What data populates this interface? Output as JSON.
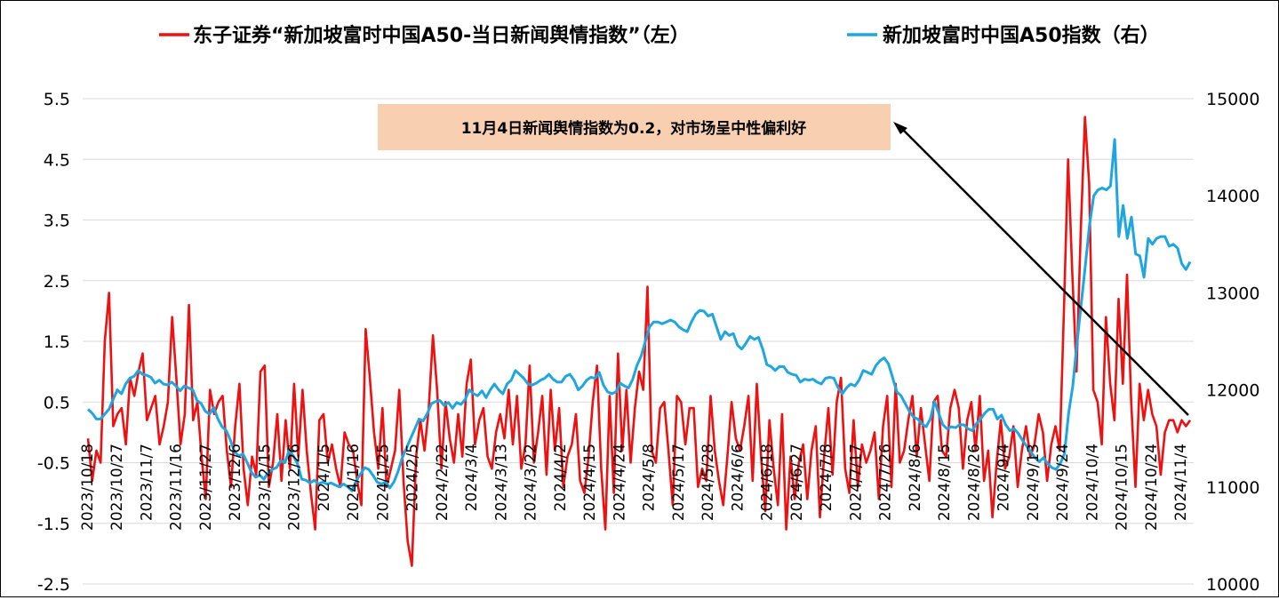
{
  "chart_data": {
    "type": "line",
    "series": [
      {
        "name": "东子证券“新加坡富时中国A50-当日新闻舆情指数”（左）",
        "axis": "left",
        "color": "#ee1111",
        "values": [
          -0.1,
          -0.8,
          -0.3,
          -0.5,
          1.5,
          2.3,
          0.1,
          0.3,
          0.4,
          -0.2,
          0.9,
          0.6,
          1.0,
          1.3,
          0.2,
          0.4,
          0.6,
          -0.2,
          0.1,
          0.5,
          1.9,
          0.9,
          -0.2,
          0.3,
          2.1,
          0.2,
          0.5,
          -0.4,
          -1.1,
          0.7,
          0.3,
          0.5,
          0.6,
          -0.3,
          -0.9,
          0.1,
          0.8,
          -0.6,
          -1.2,
          -0.4,
          -0.7,
          1.0,
          1.1,
          -0.9,
          -0.5,
          0.3,
          -0.8,
          0.2,
          -0.6,
          0.8,
          -0.4,
          0.7,
          -0.3,
          -1.0,
          -1.6,
          0.2,
          0.3,
          -0.5,
          -0.2,
          -0.6,
          -0.9,
          0.0,
          -0.2,
          -0.3,
          -0.8,
          -1.2,
          1.7,
          0.9,
          0.0,
          -0.6,
          0.4,
          -0.9,
          -0.6,
          -0.3,
          0.7,
          -0.8,
          -1.8,
          -2.2,
          -0.4,
          0.2,
          -0.3,
          0.4,
          1.6,
          0.7,
          -0.6,
          0.5,
          -0.1,
          -0.5,
          0.3,
          -0.4,
          0.8,
          1.2,
          -0.2,
          0.2,
          0.4,
          -0.4,
          -0.6,
          0.0,
          0.3,
          -0.1,
          0.7,
          -0.2,
          0.6,
          -0.6,
          -0.2,
          1.1,
          -0.5,
          0.0,
          0.6,
          -0.7,
          0.7,
          -0.3,
          0.4,
          -0.9,
          -0.4,
          -0.2,
          0.3,
          -0.8,
          -1.0,
          -0.4,
          0.5,
          1.1,
          -0.6,
          -1.6,
          0.6,
          -1.0,
          1.3,
          -0.3,
          0.7,
          -0.5,
          0.4,
          1.0,
          0.7,
          2.4,
          -0.3,
          -0.5,
          0.4,
          0.5,
          -0.3,
          -1.2,
          0.6,
          0.5,
          -0.2,
          0.4,
          0.4,
          -0.9,
          -0.6,
          -0.8,
          0.6,
          -0.3,
          -0.8,
          -1.2,
          -0.4,
          0.5,
          -0.1,
          -0.3,
          0.1,
          0.6,
          -0.8,
          0.8,
          -0.4,
          -1.3,
          0.2,
          -0.6,
          -1.2,
          0.3,
          -1.6,
          -0.4,
          -1.1,
          -0.5,
          -0.2,
          -1.1,
          -0.3,
          0.1,
          -1.4,
          -0.4,
          0.4,
          -0.7,
          0.5,
          0.9,
          -0.6,
          -1.0,
          0.2,
          -0.9,
          -0.2,
          -0.5,
          -0.3,
          0.0,
          -1.1,
          0.1,
          0.6,
          -0.9,
          0.8,
          -0.5,
          -0.3,
          0.2,
          0.6,
          -0.4,
          0.4,
          -0.2,
          -0.8,
          0.5,
          0.6,
          -0.3,
          -0.4,
          0.4,
          0.7,
          0.4,
          -0.6,
          0.2,
          0.5,
          -0.3,
          0.6,
          -0.8,
          -0.3,
          -1.4,
          -0.5,
          0.2,
          -0.6,
          -0.4,
          0.1,
          -0.9,
          -0.3,
          0.1,
          -0.4,
          -0.2,
          0.3,
          0.0,
          -0.8,
          -0.2,
          0.1,
          -0.3,
          2.0,
          4.5,
          2.6,
          1.0,
          3.3,
          5.2,
          4.1,
          0.7,
          0.5,
          -0.2,
          1.9,
          0.8,
          0.2,
          2.2,
          0.8,
          2.6,
          0.5,
          -0.9,
          0.8,
          0.2,
          0.7,
          0.3,
          0.1,
          -0.7,
          0.0,
          0.2,
          0.2,
          0.0,
          0.2,
          0.1,
          0.2
        ]
      },
      {
        "name": "新加坡富时中国A50指数（右）",
        "axis": "right",
        "color": "#1fa6e0",
        "values": [
          11800,
          11760,
          11700,
          11700,
          11750,
          11800,
          11900,
          12000,
          11960,
          12060,
          12120,
          12140,
          12200,
          12160,
          12150,
          12130,
          12070,
          12100,
          12060,
          12050,
          12080,
          12040,
          11990,
          12040,
          12020,
          12000,
          11890,
          11860,
          11780,
          11750,
          11820,
          11700,
          11620,
          11580,
          11480,
          11360,
          11320,
          11340,
          11250,
          11150,
          11100,
          11120,
          11080,
          11150,
          11180,
          11200,
          11270,
          11250,
          11380,
          11320,
          11240,
          11080,
          11070,
          11040,
          11070,
          11030,
          11050,
          11030,
          11040,
          11020,
          11000,
          11030,
          11000,
          10960,
          11060,
          11130,
          11200,
          11180,
          11120,
          11050,
          11030,
          11050,
          10990,
          11050,
          11160,
          11300,
          11400,
          11500,
          11600,
          11700,
          11680,
          11760,
          11860,
          11880,
          11890,
          11840,
          11870,
          11810,
          11870,
          11850,
          11900,
          12000,
          11960,
          11940,
          11990,
          11920,
          12000,
          12060,
          12000,
          11960,
          12060,
          12100,
          12200,
          12160,
          12120,
          12060,
          12050,
          12070,
          12100,
          12120,
          12160,
          12110,
          12080,
          12080,
          12140,
          12160,
          12100,
          12000,
          12040,
          12100,
          12130,
          12120,
          12180,
          12050,
          11980,
          11960,
          11980,
          12070,
          12040,
          12020,
          12110,
          12250,
          12350,
          12500,
          12650,
          12700,
          12700,
          12680,
          12700,
          12720,
          12700,
          12650,
          12620,
          12600,
          12700,
          12780,
          12820,
          12810,
          12760,
          12780,
          12650,
          12520,
          12600,
          12560,
          12580,
          12460,
          12420,
          12480,
          12550,
          12520,
          12540,
          12420,
          12260,
          12240,
          12200,
          12240,
          12240,
          12180,
          12160,
          12150,
          12080,
          12110,
          12100,
          12110,
          12080,
          12060,
          12120,
          12130,
          12120,
          12020,
          11960,
          12020,
          12060,
          12040,
          12100,
          12200,
          12180,
          12160,
          12250,
          12300,
          12330,
          12270,
          12130,
          11980,
          11940,
          11860,
          11780,
          11720,
          11700,
          11650,
          11620,
          11700,
          11880,
          11760,
          11640,
          11600,
          11620,
          11610,
          11640,
          11640,
          11600,
          11580,
          11650,
          11700,
          11760,
          11800,
          11800,
          11700,
          11740,
          11640,
          11580,
          11600,
          11550,
          11480,
          11420,
          11360,
          11300,
          11260,
          11300,
          11240,
          11200,
          11180,
          11240,
          11340,
          11760,
          12040,
          12480,
          12880,
          13280,
          13700,
          14000,
          14060,
          14080,
          14060,
          14100,
          14580,
          13580,
          13900,
          13560,
          13780,
          13400,
          13380,
          13160,
          13560,
          13500,
          13560,
          13580,
          13580,
          13480,
          13500,
          13460,
          13300,
          13240,
          13320
        ]
      }
    ],
    "x_tick_labels": [
      "2023/10/18",
      "2023/10/27",
      "2023/11/7",
      "2023/11/16",
      "2023/11/27",
      "2023/12/6",
      "2023/12/15",
      "2023/12/26",
      "2024/1/5",
      "2024/1/16",
      "2024/1/25",
      "2024/2/5",
      "2024/2/22",
      "2024/3/4",
      "2024/3/13",
      "2024/3/22",
      "2024/4/2",
      "2024/4/15",
      "2024/4/24",
      "2024/5/8",
      "2024/5/17",
      "2024/5/28",
      "2024/6/6",
      "2024/6/18",
      "2024/6/27",
      "2024/7/8",
      "2024/7/17",
      "2024/7/26",
      "2024/8/6",
      "2024/8/15",
      "2024/8/26",
      "2024/9/4",
      "2024/9/13",
      "2024/9/24",
      "2024/10/4",
      "2024/10/15",
      "2024/10/24",
      "2024/11/4"
    ],
    "y_left": {
      "min": -2.5,
      "max": 5.5,
      "ticks": [
        -2.5,
        -1.5,
        -0.5,
        0.5,
        1.5,
        2.5,
        3.5,
        4.5,
        5.5
      ]
    },
    "y_right": {
      "min": 10000,
      "max": 15000,
      "ticks": [
        10000,
        11000,
        12000,
        13000,
        14000,
        15000
      ]
    },
    "legend_position": "top",
    "grid": true,
    "annotation": {
      "text": "11月4日新闻舆情指数为0.2，对市场呈中性偏利好",
      "box_color": "#f8cfb0"
    }
  }
}
